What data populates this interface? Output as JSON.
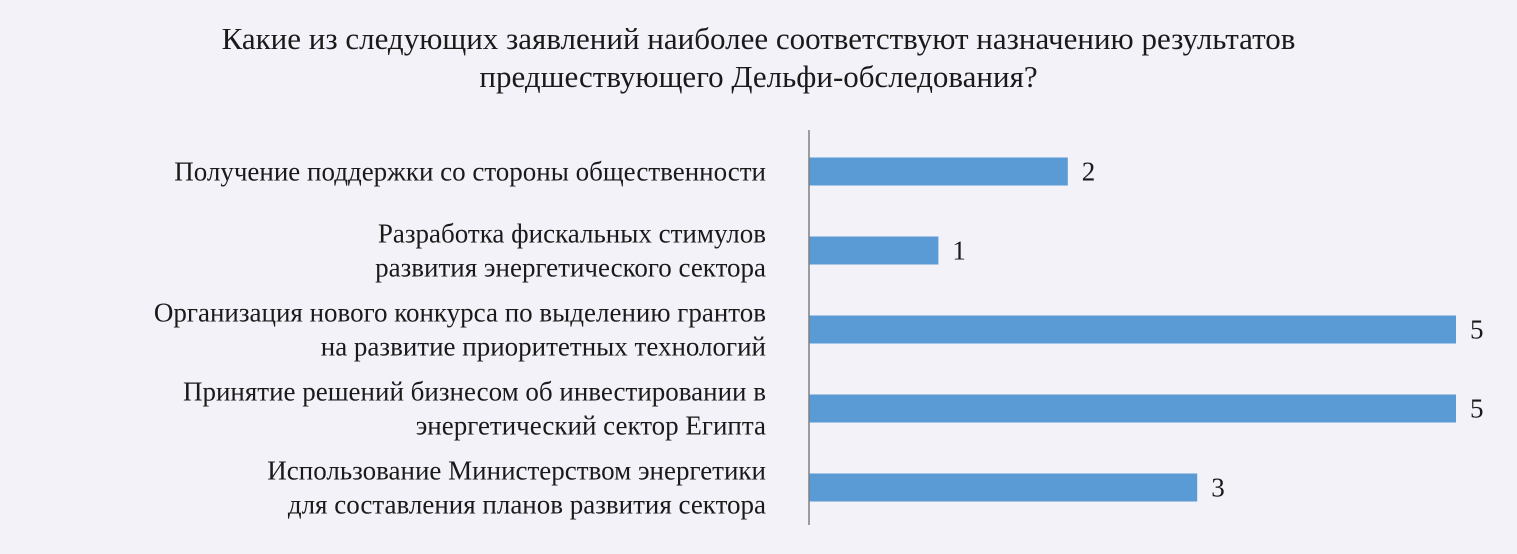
{
  "chart_data": {
    "type": "bar",
    "orientation": "horizontal",
    "title_lines": [
      "Какие из следующих заявлений наиболее соответствуют назначению результатов",
      "предшествующего Дельфи-обследования?"
    ],
    "categories": [
      [
        "Получение поддержки со стороны общественности"
      ],
      [
        "Разработка фискальных стимулов",
        "развития энергетического сектора"
      ],
      [
        "Организация нового конкурса по выделению грантов",
        "на развитие приоритетных технологий"
      ],
      [
        "Принятие решений бизнесом об инвестировании в",
        "энергетический сектор Египта"
      ],
      [
        "Использование Министерством энергетики",
        "для составления планов развития сектора"
      ]
    ],
    "values": [
      2,
      1,
      5,
      5,
      3
    ],
    "data_labels": [
      "2",
      "1",
      "5",
      "5",
      "3"
    ],
    "xlim": [
      0,
      5
    ],
    "grid": false,
    "legend": "none",
    "bar_color": "#5b9bd5",
    "axis_color": "#7f7f7f"
  }
}
